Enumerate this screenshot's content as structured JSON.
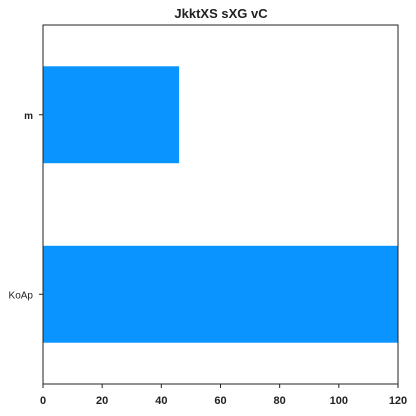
{
  "chart_data": {
    "type": "bar",
    "orientation": "horizontal",
    "title": "JkktXS sXG vC",
    "categories": [
      "m",
      "KoAp"
    ],
    "values": [
      46,
      120
    ],
    "xlim": [
      0,
      120
    ],
    "xticks": [
      0,
      20,
      40,
      60,
      80,
      100,
      120
    ],
    "xlabel": "",
    "ylabel": "",
    "grid": false,
    "bar_color": "#0a94ff"
  }
}
